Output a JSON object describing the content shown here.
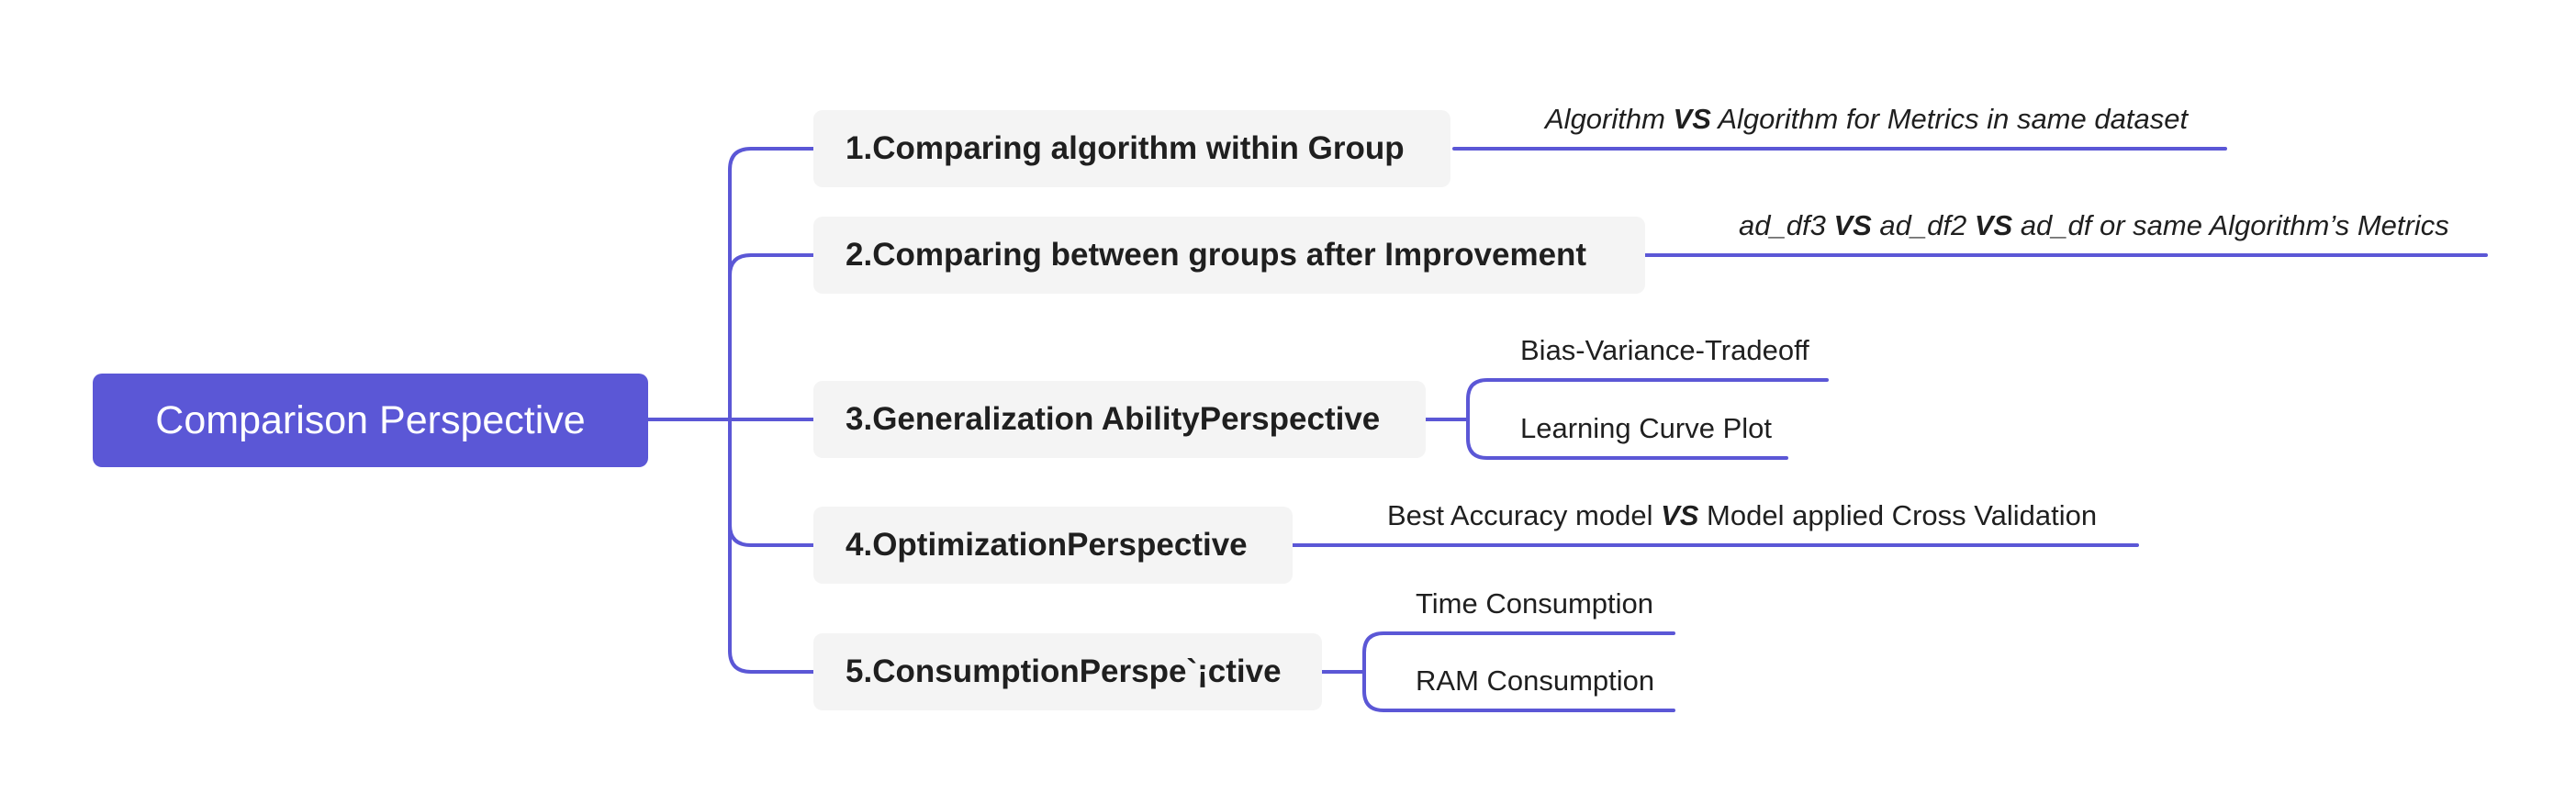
{
  "root": {
    "label": "Comparison Perspective"
  },
  "nodes": [
    {
      "label": "1.Comparing algorithm within Group",
      "leaves": [
        {
          "parts": [
            "Algorithm ",
            "VS",
            " Algorithm for Metrics in same dataset"
          ]
        }
      ]
    },
    {
      "label": "2.Comparing between groups after Improvement",
      "leaves": [
        {
          "parts": [
            "ad_df3 ",
            "VS",
            " ad_df2 ",
            "VS",
            " ad_df or same Algorithm’s Metrics"
          ]
        }
      ]
    },
    {
      "label": "3.Generalization AbilityPerspective",
      "leaves": [
        {
          "parts": [
            "Bias-Variance-Tradeoff"
          ]
        },
        {
          "parts": [
            "Learning Curve Plot"
          ]
        }
      ]
    },
    {
      "label": "4.OptimizationPerspective",
      "leaves": [
        {
          "parts": [
            "Best Accuracy model ",
            "VS",
            " Model applied Cross Validation"
          ]
        }
      ]
    },
    {
      "label": "5.ConsumptionPerspe`¡ctive",
      "leaves": [
        {
          "parts": [
            "Time Consumption"
          ]
        },
        {
          "parts": [
            "RAM Consumption"
          ]
        }
      ]
    }
  ],
  "colors": {
    "accent": "#5b57d6",
    "node_bg": "#f4f4f4",
    "text": "#1f1f1f"
  }
}
